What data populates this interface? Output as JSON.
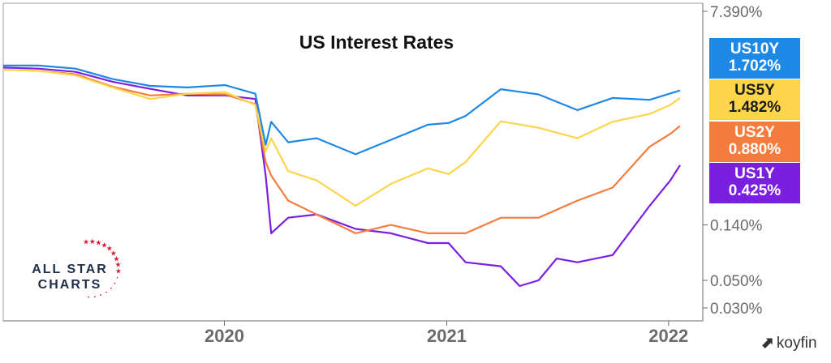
{
  "colors": {
    "us10y": "#1e88e5",
    "us5y": "#fdd54a",
    "us2y": "#f57c3f",
    "us1y": "#7a1ee0",
    "axis": "#6b6b6b"
  },
  "logo": {
    "line1": "ALL STAR",
    "line2": "CHARTS"
  },
  "watermark": "koyfin",
  "chart_data": {
    "type": "line",
    "title": "US Interest Rates",
    "y_scale": "log",
    "ylim": [
      0.027,
      7.39
    ],
    "xlim": [
      "2019-01-02",
      "2022-01-20"
    ],
    "x_ticks": [
      "2020",
      "2021",
      "2022"
    ],
    "y_ticks": [
      "7.390%",
      "0.140%",
      "0.050%",
      "0.030%"
    ],
    "grid": false,
    "legend": "right-axis tags",
    "series": [
      {
        "name": "US10Y",
        "last_label": "1.702%",
        "color": "#1e88e5",
        "x": [
          "2019-01-02",
          "2019-03-01",
          "2019-05-01",
          "2019-07-01",
          "2019-09-01",
          "2019-11-01",
          "2020-01-02",
          "2020-02-21",
          "2020-03-09",
          "2020-03-18",
          "2020-04-15",
          "2020-06-01",
          "2020-08-04",
          "2020-10-01",
          "2020-12-01",
          "2021-01-04",
          "2021-02-01",
          "2021-03-31",
          "2021-06-01",
          "2021-08-04",
          "2021-10-01",
          "2021-12-01",
          "2022-01-04",
          "2022-01-20"
        ],
        "values": [
          2.7,
          2.7,
          2.55,
          2.1,
          1.85,
          1.8,
          1.88,
          1.6,
          0.62,
          0.95,
          0.65,
          0.7,
          0.52,
          0.68,
          0.9,
          0.93,
          1.06,
          1.74,
          1.58,
          1.18,
          1.48,
          1.43,
          1.61,
          1.7
        ]
      },
      {
        "name": "US5Y",
        "last_label": "1.482%",
        "color": "#fdd54a",
        "x": [
          "2019-01-02",
          "2019-03-01",
          "2019-05-01",
          "2019-07-01",
          "2019-09-01",
          "2019-11-01",
          "2020-01-02",
          "2020-02-21",
          "2020-03-09",
          "2020-03-18",
          "2020-04-15",
          "2020-06-01",
          "2020-08-04",
          "2020-10-01",
          "2020-12-01",
          "2021-01-04",
          "2021-02-01",
          "2021-03-31",
          "2021-06-01",
          "2021-08-04",
          "2021-10-01",
          "2021-12-01",
          "2022-01-04",
          "2022-01-20"
        ],
        "values": [
          2.5,
          2.45,
          2.25,
          1.8,
          1.45,
          1.6,
          1.65,
          1.3,
          0.55,
          0.7,
          0.38,
          0.32,
          0.2,
          0.3,
          0.4,
          0.36,
          0.45,
          0.96,
          0.85,
          0.7,
          0.95,
          1.1,
          1.3,
          1.48
        ]
      },
      {
        "name": "US2Y",
        "last_label": "0.880%",
        "color": "#f57c3f",
        "x": [
          "2019-01-02",
          "2019-03-01",
          "2019-05-01",
          "2019-07-01",
          "2019-09-01",
          "2019-11-01",
          "2020-01-02",
          "2020-02-21",
          "2020-03-09",
          "2020-03-18",
          "2020-04-15",
          "2020-06-01",
          "2020-08-04",
          "2020-10-01",
          "2020-12-01",
          "2021-01-04",
          "2021-02-01",
          "2021-03-31",
          "2021-06-01",
          "2021-08-04",
          "2021-10-01",
          "2021-12-01",
          "2022-01-04",
          "2022-01-20"
        ],
        "values": [
          2.5,
          2.45,
          2.3,
          1.82,
          1.55,
          1.6,
          1.58,
          1.32,
          0.45,
          0.35,
          0.22,
          0.17,
          0.12,
          0.14,
          0.12,
          0.12,
          0.12,
          0.16,
          0.16,
          0.22,
          0.28,
          0.6,
          0.76,
          0.88
        ]
      },
      {
        "name": "US1Y",
        "last_label": "0.425%",
        "color": "#7a1ee0",
        "x": [
          "2019-01-02",
          "2019-03-01",
          "2019-05-01",
          "2019-07-01",
          "2019-09-01",
          "2019-11-01",
          "2020-01-02",
          "2020-02-21",
          "2020-03-09",
          "2020-03-18",
          "2020-04-15",
          "2020-06-01",
          "2020-08-04",
          "2020-10-01",
          "2020-12-01",
          "2021-01-04",
          "2021-02-01",
          "2021-03-31",
          "2021-05-01",
          "2021-06-01",
          "2021-07-01",
          "2021-08-04",
          "2021-10-01",
          "2021-12-01",
          "2022-01-04",
          "2022-01-20"
        ],
        "values": [
          2.6,
          2.55,
          2.4,
          2.0,
          1.75,
          1.55,
          1.55,
          1.45,
          0.35,
          0.12,
          0.16,
          0.17,
          0.13,
          0.12,
          0.1,
          0.1,
          0.07,
          0.065,
          0.045,
          0.05,
          0.075,
          0.07,
          0.08,
          0.2,
          0.32,
          0.425
        ]
      }
    ]
  }
}
